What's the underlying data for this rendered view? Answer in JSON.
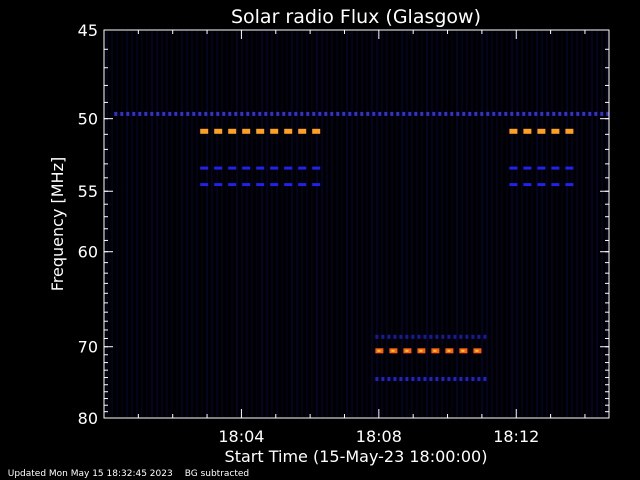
{
  "chart_data": {
    "type": "heatmap",
    "title": "Solar radio Flux (Glasgow)",
    "xlabel": "Start Time (15-May-23 18:00:00)",
    "ylabel": "Frequency [MHz]",
    "x_unit": "minutes after 18:00",
    "xlim": [
      0,
      14.7
    ],
    "ylim": [
      45,
      80
    ],
    "y_scale": "reciprocal",
    "x_ticks": [
      {
        "value": 4,
        "label": "18:04"
      },
      {
        "value": 8,
        "label": "18:08"
      },
      {
        "value": 12,
        "label": "18:12"
      }
    ],
    "y_ticks": [
      {
        "value": 45,
        "label": "45"
      },
      {
        "value": 50,
        "label": "50"
      },
      {
        "value": 55,
        "label": "55"
      },
      {
        "value": 60,
        "label": "60"
      },
      {
        "value": 70,
        "label": "70"
      },
      {
        "value": 80,
        "label": "80"
      }
    ],
    "colormap": [
      "#000000",
      "#0000ff",
      "#ff0000",
      "#ffa500"
    ],
    "features": [
      {
        "freq": 49.7,
        "t_start": 0.3,
        "t_end": 14.7,
        "intensity": "low",
        "color": "#3333cc"
      },
      {
        "freq": 50.8,
        "t_start": 2.8,
        "t_end": 6.4,
        "intensity": "high",
        "color": "#ffa020"
      },
      {
        "freq": 53.3,
        "t_start": 2.8,
        "t_end": 6.4,
        "intensity": "medium",
        "color": "#2222ee"
      },
      {
        "freq": 54.5,
        "t_start": 2.8,
        "t_end": 6.4,
        "intensity": "medium",
        "color": "#2222ee"
      },
      {
        "freq": 50.8,
        "t_start": 11.8,
        "t_end": 13.5,
        "intensity": "high",
        "color": "#ffa020"
      },
      {
        "freq": 53.3,
        "t_start": 11.8,
        "t_end": 13.5,
        "intensity": "medium",
        "color": "#2222ee"
      },
      {
        "freq": 54.5,
        "t_start": 11.8,
        "t_end": 13.5,
        "intensity": "medium",
        "color": "#2222ee"
      },
      {
        "freq": 70.5,
        "t_start": 7.9,
        "t_end": 11.1,
        "intensity": "high",
        "color": "#ff6010"
      },
      {
        "freq": 68.8,
        "t_start": 7.9,
        "t_end": 11.1,
        "intensity": "low",
        "color": "#1a1a99"
      },
      {
        "freq": 74.2,
        "t_start": 7.9,
        "t_end": 11.1,
        "intensity": "low",
        "color": "#2222cc"
      }
    ]
  },
  "footer": {
    "updated": "Updated Mon May 15 18:32:45 2023",
    "note": "BG subtracted"
  }
}
